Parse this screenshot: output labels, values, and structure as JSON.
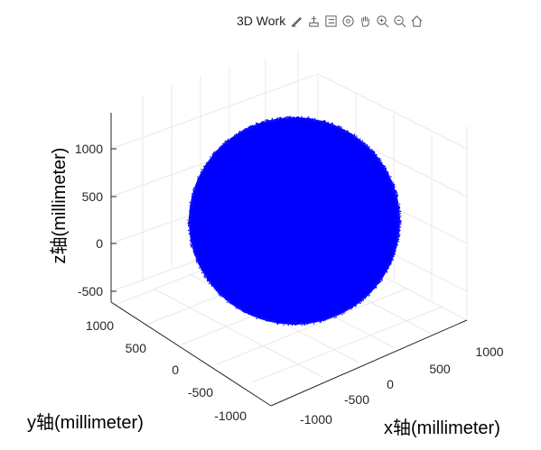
{
  "toolbar": {
    "title": "3D Work",
    "icons": [
      "brush-icon",
      "data-tip-icon",
      "legend-icon",
      "rotate-3d-icon",
      "pan-icon",
      "zoom-in-icon",
      "zoom-out-icon",
      "home-icon"
    ]
  },
  "axes": {
    "xlabel": "x轴(millimeter)",
    "ylabel": "y轴(millimeter)",
    "zlabel": "z轴(millimeter)",
    "x_ticks": [
      "-1000",
      "-500",
      "0",
      "500",
      "1000"
    ],
    "y_ticks": [
      "1000",
      "500",
      "0",
      "-500",
      "-1000"
    ],
    "z_ticks": [
      "1000",
      "500",
      "0",
      "-500"
    ]
  },
  "chart_data": {
    "type": "scatter",
    "title": "",
    "xlabel": "x轴(millimeter)",
    "ylabel": "y轴(millimeter)",
    "zlabel": "z轴(millimeter)",
    "shape": "sphere point cloud",
    "center": [
      0,
      0,
      300
    ],
    "radius": 1100,
    "color": "#0000ff",
    "grid": true,
    "xlim": [
      -1100,
      1100
    ],
    "ylim": [
      -1100,
      1100
    ],
    "zlim": [
      -600,
      1300
    ]
  },
  "colors": {
    "points": "#0000ff",
    "axis": "#262626",
    "grid": "#e6e6e6"
  }
}
